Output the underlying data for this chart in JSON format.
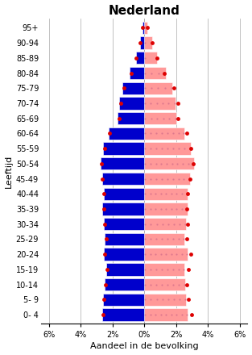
{
  "title": "Nederland",
  "xlabel": "Aandeel in de bevolking",
  "ylabel": "Leeftijd",
  "age_groups": [
    "0- 4",
    "5- 9",
    "10-14",
    "15-19",
    "20-24",
    "25-29",
    "30-34",
    "35-39",
    "40-44",
    "45-49",
    "50-54",
    "55-59",
    "60-64",
    "65-69",
    "70-74",
    "75-79",
    "80-84",
    "85-89",
    "90-94",
    "95+"
  ],
  "male_bars": [
    2.65,
    2.6,
    2.5,
    2.4,
    2.55,
    2.5,
    2.55,
    2.65,
    2.55,
    2.65,
    2.75,
    2.6,
    2.25,
    1.7,
    1.6,
    1.4,
    0.9,
    0.5,
    0.28,
    0.1
  ],
  "female_bars": [
    2.75,
    2.65,
    2.6,
    2.55,
    2.75,
    2.55,
    2.65,
    2.75,
    2.75,
    2.9,
    3.15,
    2.95,
    2.55,
    2.0,
    1.95,
    1.75,
    1.35,
    0.8,
    0.52,
    0.2
  ],
  "male_dots": [
    2.58,
    2.52,
    2.42,
    2.32,
    2.48,
    2.38,
    2.48,
    2.55,
    2.55,
    2.65,
    2.68,
    2.5,
    2.2,
    1.6,
    1.5,
    1.28,
    0.8,
    0.5,
    0.28,
    0.1
  ],
  "female_dots": [
    2.98,
    2.78,
    2.68,
    2.78,
    2.95,
    2.68,
    2.75,
    2.68,
    2.75,
    2.9,
    3.1,
    2.95,
    2.68,
    2.1,
    2.1,
    1.88,
    1.28,
    0.78,
    0.5,
    0.2
  ],
  "bar_color_male": "#0000CC",
  "bar_color_female": "#FF9999",
  "dot_color": "#DD0000",
  "grid_color": "#AAAAAA",
  "background_color": "#FFFFFF",
  "xlim": 6.5,
  "xticks": [
    -6,
    -4,
    -2,
    0,
    2,
    4,
    6
  ],
  "xtick_labels": [
    "6%",
    "4%",
    "2%",
    "0%",
    "2%",
    "4%",
    "6%"
  ],
  "title_fontsize": 11,
  "axis_fontsize": 8,
  "tick_fontsize": 7,
  "bar_height": 0.82
}
